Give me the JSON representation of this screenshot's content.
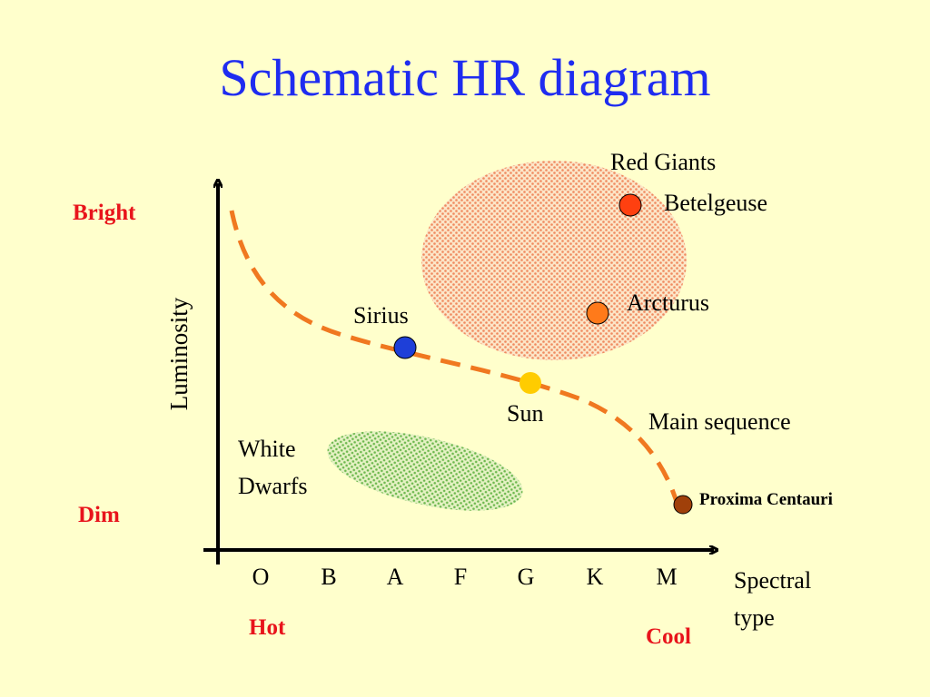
{
  "slide": {
    "title": "Schematic HR diagram"
  },
  "axes": {
    "y_label": "Luminosity",
    "x_label_line1": "Spectral",
    "x_label_line2": "type",
    "bright": "Bright",
    "dim": "Dim",
    "hot": "Hot",
    "cool": "Cool",
    "spectral_types": [
      "O",
      "B",
      "A",
      "F",
      "G",
      "K",
      "M"
    ]
  },
  "regions": {
    "red_giants": "Red Giants",
    "white_dwarfs_line1": "White",
    "white_dwarfs_line2": "Dwarfs",
    "main_sequence": "Main sequence"
  },
  "stars": {
    "betelgeuse": "Betelgeuse",
    "arcturus": "Arcturus",
    "sirius": "Sirius",
    "sun": "Sun",
    "proxima": "Proxima Centauri"
  },
  "colors": {
    "title": "#1F2CF0",
    "accent_red": "#E8141B",
    "main_sequence": "#F07820",
    "red_giant_fill": "#F0A070",
    "white_dwarf_fill": "#7CBF5A",
    "betelgeuse": "#FF4010",
    "arcturus": "#FF7A1A",
    "sirius": "#1E3FD8",
    "sun": "#FFCC00",
    "proxima": "#A0400A"
  }
}
